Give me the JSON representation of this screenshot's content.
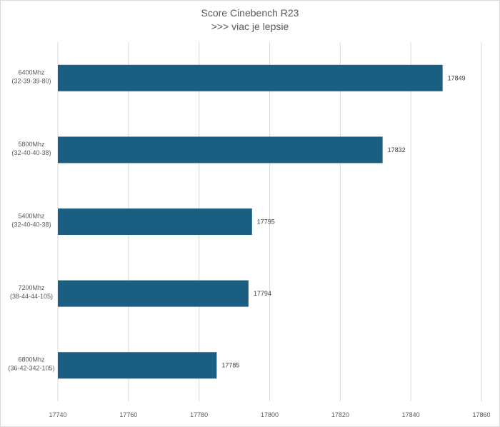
{
  "chart_data": {
    "type": "bar",
    "orientation": "horizontal",
    "title": "Score Cinebench R23",
    "subtitle": ">>> viac je lepsie",
    "categories": [
      [
        "6400Mhz",
        "(32-39-39-80)"
      ],
      [
        "5800Mhz",
        "(32-40-40-38)"
      ],
      [
        "5400Mhz",
        "(32-40-40-38)"
      ],
      [
        "7200Mhz",
        "(38-44-44-105)"
      ],
      [
        "6800Mhz",
        "(36-42-342-105)"
      ]
    ],
    "values": [
      17849,
      17832,
      17795,
      17794,
      17785
    ],
    "xlim": [
      17740,
      17860
    ],
    "xticks": [
      "17740",
      "17760",
      "17780",
      "17800",
      "17820",
      "17840",
      "17860"
    ],
    "grid": "vertical",
    "bar_color": "#1a5f82"
  }
}
